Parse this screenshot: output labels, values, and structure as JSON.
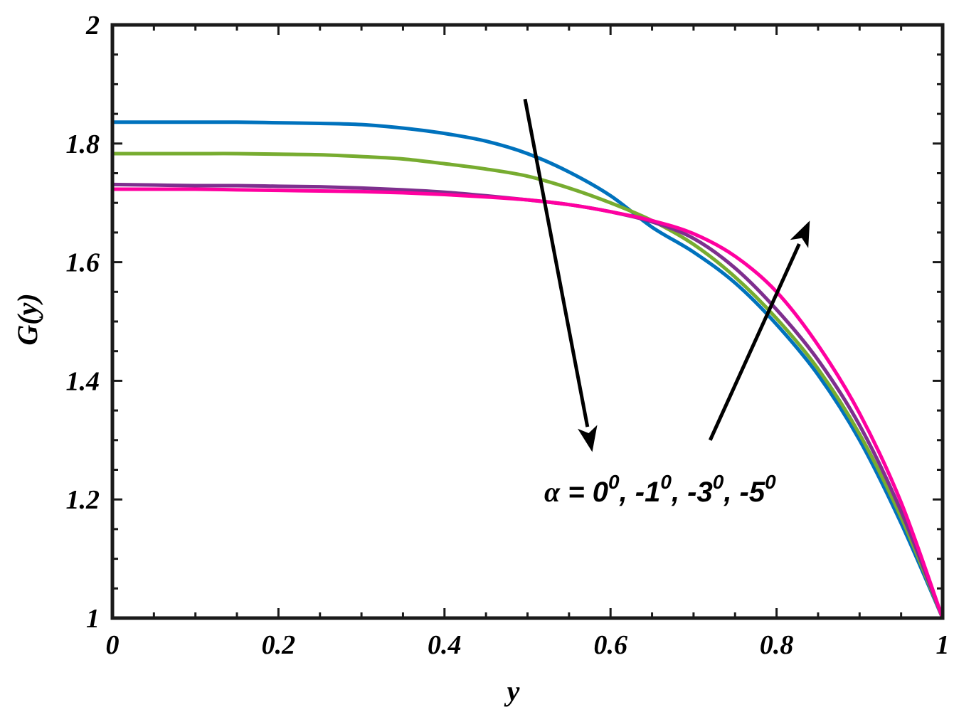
{
  "chart_data": {
    "type": "line",
    "xlabel": "y",
    "ylabel": "G(y)",
    "xlim": [
      0,
      1
    ],
    "ylim": [
      1,
      2
    ],
    "xticks": [
      0,
      0.2,
      0.4,
      0.6,
      0.8,
      1
    ],
    "xtick_labels": [
      "0",
      "0.2",
      "0.4",
      "0.6",
      "0.8",
      "1"
    ],
    "yticks": [
      1,
      1.2,
      1.4,
      1.6,
      1.8,
      2
    ],
    "ytick_labels": [
      "1",
      "1.2",
      "1.4",
      "1.6",
      "1.8",
      "2"
    ],
    "grid": false,
    "legend": "none",
    "x": [
      0,
      0.05,
      0.1,
      0.15,
      0.2,
      0.25,
      0.3,
      0.35,
      0.4,
      0.45,
      0.5,
      0.55,
      0.6,
      0.65,
      0.7,
      0.75,
      0.8,
      0.85,
      0.9,
      0.95,
      1
    ],
    "series": [
      {
        "color": "#0072BD",
        "values": [
          1.836,
          1.836,
          1.836,
          1.836,
          1.835,
          1.834,
          1.832,
          1.826,
          1.817,
          1.804,
          1.783,
          1.752,
          1.712,
          1.659,
          1.617,
          1.565,
          1.495,
          1.41,
          1.3,
          1.16,
          1.0
        ]
      },
      {
        "color": "#77AC30",
        "values": [
          1.783,
          1.783,
          1.783,
          1.783,
          1.782,
          1.781,
          1.778,
          1.774,
          1.766,
          1.757,
          1.745,
          1.725,
          1.7,
          1.67,
          1.63,
          1.575,
          1.505,
          1.42,
          1.31,
          1.17,
          1.0
        ]
      },
      {
        "color": "#7E2F8E",
        "values": [
          1.731,
          1.73,
          1.729,
          1.729,
          1.728,
          1.727,
          1.725,
          1.722,
          1.718,
          1.712,
          1.705,
          1.697,
          1.685,
          1.668,
          1.64,
          1.59,
          1.52,
          1.435,
          1.325,
          1.18,
          1.0
        ]
      },
      {
        "color": "#FF00A0",
        "values": [
          1.723,
          1.723,
          1.723,
          1.722,
          1.721,
          1.72,
          1.719,
          1.717,
          1.714,
          1.71,
          1.705,
          1.697,
          1.685,
          1.67,
          1.648,
          1.61,
          1.55,
          1.46,
          1.345,
          1.195,
          1.0
        ]
      }
    ],
    "annotations": [
      {
        "text_symbol": "α",
        "text": " = 0",
        "sup1": "0",
        "t2": ", -1",
        "sup2": "0",
        "t3": ", -3",
        "sup3": "0",
        "t4": ", -5",
        "sup4": "0",
        "x": 0.52,
        "y": 1.2
      }
    ],
    "arrows": [
      {
        "from": [
          0.497,
          1.875
        ],
        "to": [
          0.578,
          1.28
        ]
      },
      {
        "from": [
          0.72,
          1.3
        ],
        "to": [
          0.84,
          1.67
        ]
      }
    ]
  }
}
